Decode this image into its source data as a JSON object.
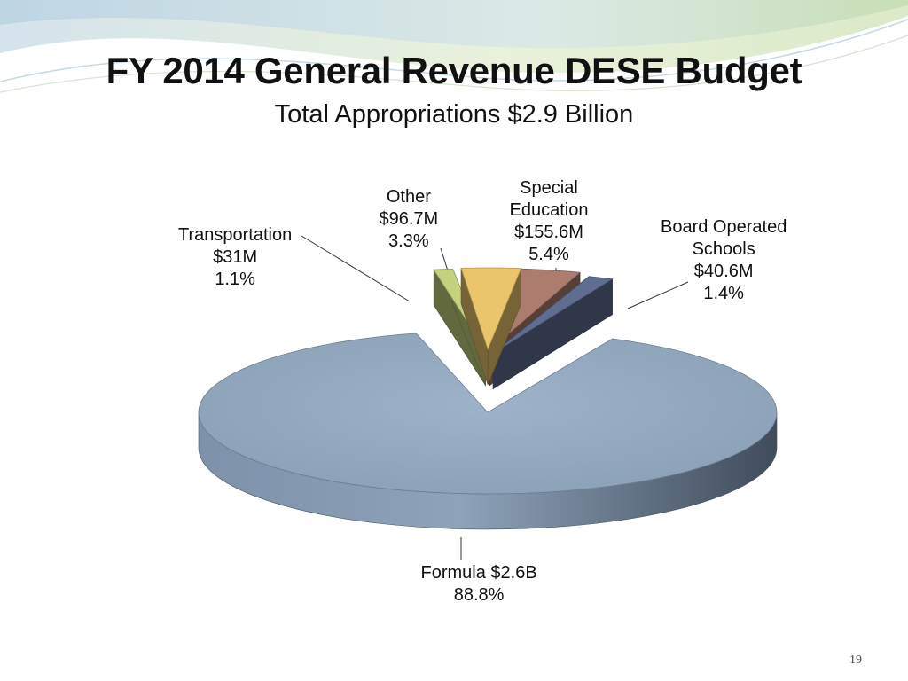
{
  "slide": {
    "title": "FY 2014 General Revenue DESE Budget",
    "subtitle": "Total Appropriations  $2.9 Billion",
    "page_number": "19"
  },
  "chart_data": {
    "type": "pie",
    "style": "3d-exploded",
    "title": "FY 2014 General Revenue DESE Budget",
    "subtitle": "Total Appropriations  $2.9 Billion",
    "legend": "none",
    "slices": [
      {
        "key": "formula",
        "label_lines": [
          "Formula $2.6B",
          "88.8%"
        ],
        "value": 2600,
        "percent": 88.8,
        "color": "#93a9c0"
      },
      {
        "key": "transportation",
        "label_lines": [
          "Transportation",
          "$31M",
          "1.1%"
        ],
        "value": 31,
        "percent": 1.1,
        "color": "#c4d27e"
      },
      {
        "key": "other",
        "label_lines": [
          "Other",
          "$96.7M",
          "3.3%"
        ],
        "value": 96.7,
        "percent": 3.3,
        "color": "#ebc56b"
      },
      {
        "key": "special-education",
        "label_lines": [
          "Special",
          "Education",
          "$155.6M",
          "5.4%"
        ],
        "value": 155.6,
        "percent": 5.4,
        "color": "#ac7d6e"
      },
      {
        "key": "board-operated-schools",
        "label_lines": [
          "Board Operated",
          "Schools",
          "$40.6M",
          "1.4%"
        ],
        "value": 40.6,
        "percent": 1.4,
        "color": "#5f6d91"
      }
    ]
  }
}
